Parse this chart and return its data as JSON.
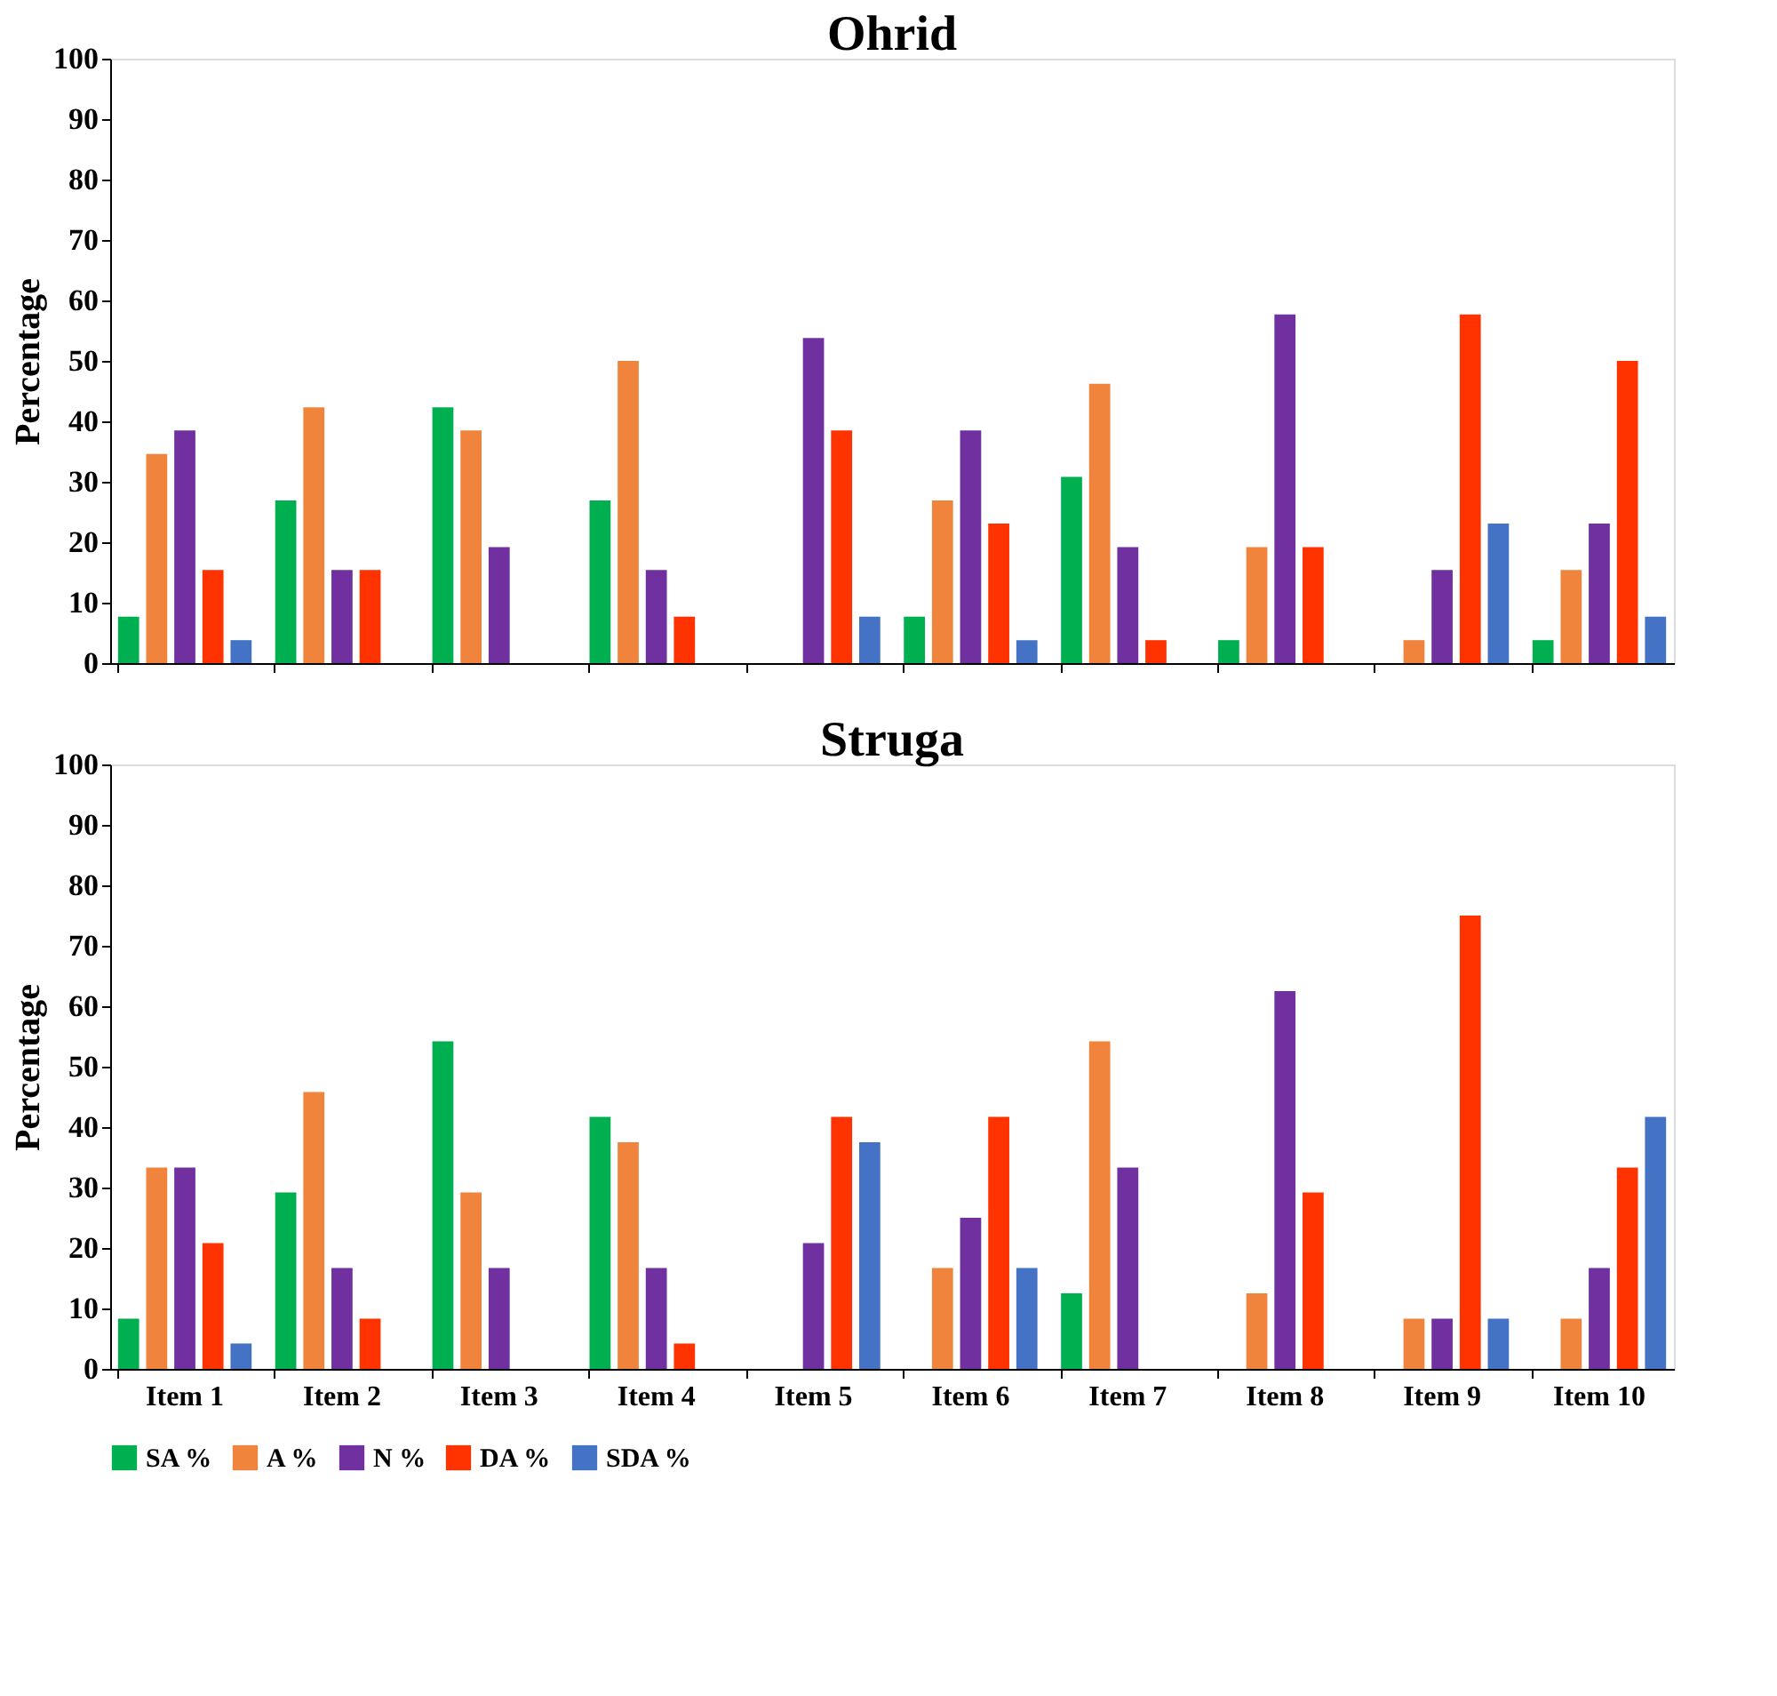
{
  "chart_data": [
    {
      "type": "bar",
      "title": "Ohrid",
      "ylabel": "Percentage",
      "categories": [
        null,
        null,
        null,
        null,
        null,
        null,
        null,
        null,
        null,
        null
      ],
      "ylim": [
        0,
        100
      ],
      "yticks": [
        0,
        10,
        20,
        30,
        40,
        50,
        60,
        70,
        80,
        90,
        100
      ],
      "grid": false,
      "legend": "bottom",
      "tick_labels": "y",
      "series": [
        {
          "name": "SA %",
          "color": "#00b050",
          "values": [
            7.7,
            26.9,
            42.3,
            26.9,
            0,
            7.7,
            30.8,
            3.8,
            0,
            3.8
          ]
        },
        {
          "name": "A %",
          "color": "#f0843c",
          "values": [
            34.6,
            42.3,
            38.5,
            50,
            0,
            26.9,
            46.2,
            19.2,
            3.8,
            15.4
          ]
        },
        {
          "name": "N %",
          "color": "#7030a0",
          "values": [
            38.5,
            15.4,
            19.2,
            15.4,
            53.8,
            38.5,
            19.2,
            57.7,
            15.4,
            23.1
          ]
        },
        {
          "name": "DA %",
          "color": "#ff3300",
          "values": [
            15.4,
            15.4,
            0,
            7.7,
            38.5,
            23.1,
            3.8,
            19.2,
            57.7,
            50
          ]
        },
        {
          "name": "SDA %",
          "color": "#4472c4",
          "values": [
            3.8,
            0,
            0,
            0,
            7.7,
            3.8,
            0,
            0,
            23.1,
            7.7
          ]
        }
      ]
    },
    {
      "type": "bar",
      "title": "Struga",
      "ylabel": "Percentage",
      "categories": [
        "Item 1",
        "Item 2",
        "Item 3",
        "Item 4",
        "Item 5",
        "Item 6",
        "Item 7",
        "Item 8",
        "Item 9",
        "Item 10"
      ],
      "ylim": [
        0,
        100
      ],
      "yticks": [
        0,
        10,
        20,
        30,
        40,
        50,
        60,
        70,
        80,
        90,
        100
      ],
      "grid": false,
      "legend": "bottom",
      "series": [
        {
          "name": "SA %",
          "color": "#00b050",
          "values": [
            8.3,
            29.2,
            54.2,
            41.7,
            0,
            0,
            12.5,
            0,
            0,
            0
          ]
        },
        {
          "name": "A %",
          "color": "#f0843c",
          "values": [
            33.3,
            45.8,
            29.2,
            37.5,
            0,
            16.7,
            54.2,
            12.5,
            8.3,
            8.3
          ]
        },
        {
          "name": "N %",
          "color": "#7030a0",
          "values": [
            33.3,
            16.7,
            16.7,
            16.7,
            20.8,
            25,
            33.3,
            62.5,
            8.3,
            16.7
          ]
        },
        {
          "name": "DA %",
          "color": "#ff3300",
          "values": [
            20.8,
            8.3,
            0,
            4.2,
            41.7,
            41.7,
            0,
            29.2,
            75,
            33.3
          ]
        },
        {
          "name": "SDA %",
          "color": "#4472c4",
          "values": [
            4.2,
            0,
            0,
            0,
            37.5,
            16.7,
            0,
            0,
            8.3,
            41.7
          ]
        }
      ]
    }
  ]
}
